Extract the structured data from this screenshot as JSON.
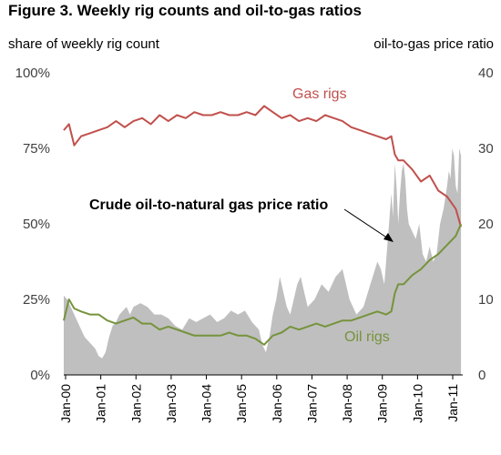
{
  "title": "Figure 3.  Weekly rig counts and oil-to-gas ratios",
  "chart_data": {
    "type": "line",
    "left_axis": {
      "label": "share of weekly rig count",
      "ticks": [
        "0%",
        "25%",
        "50%",
        "75%",
        "100%"
      ],
      "range": [
        0,
        100
      ]
    },
    "right_axis": {
      "label": "oil-to-gas price ratio",
      "ticks": [
        "0",
        "10",
        "20",
        "30",
        "40"
      ],
      "range": [
        0,
        40
      ]
    },
    "x_ticks": [
      "Jan-00",
      "Jan-01",
      "Jan-02",
      "Jan-03",
      "Jan-04",
      "Jan-05",
      "Jan-06",
      "Jan-07",
      "Jan-08",
      "Jan-09",
      "Jan-10",
      "Jan-11"
    ],
    "x_range": [
      2000.0,
      2011.45
    ],
    "annotations": {
      "gas": "Gas rigs",
      "oil": "Oil rigs",
      "ratio": "Crude oil-to-natural gas price ratio"
    },
    "grid": false,
    "series": [
      {
        "name": "Gas rigs",
        "axis": "left",
        "render": "line",
        "color": "#c0504d",
        "x": [
          2000.0,
          2000.15,
          2000.3,
          2000.5,
          2000.75,
          2001.0,
          2001.25,
          2001.5,
          2001.75,
          2002.0,
          2002.25,
          2002.5,
          2002.75,
          2003.0,
          2003.25,
          2003.5,
          2003.75,
          2004.0,
          2004.25,
          2004.5,
          2004.75,
          2005.0,
          2005.25,
          2005.5,
          2005.75,
          2006.0,
          2006.25,
          2006.5,
          2006.75,
          2007.0,
          2007.25,
          2007.5,
          2007.75,
          2008.0,
          2008.25,
          2008.5,
          2008.75,
          2009.0,
          2009.25,
          2009.4,
          2009.5,
          2009.6,
          2009.75,
          2010.0,
          2010.25,
          2010.5,
          2010.75,
          2011.0,
          2011.25,
          2011.4
        ],
        "y": [
          81,
          83,
          76,
          79,
          80,
          81,
          82,
          84,
          82,
          84,
          85,
          83,
          86,
          84,
          86,
          85,
          87,
          86,
          86,
          87,
          86,
          86,
          87,
          86,
          89,
          87,
          85,
          86,
          84,
          85,
          84,
          86,
          85,
          84,
          82,
          81,
          80,
          79,
          78,
          79,
          73,
          71,
          71,
          68,
          64,
          66,
          61,
          59,
          55,
          49
        ]
      },
      {
        "name": "Oil rigs",
        "axis": "left",
        "render": "line",
        "color": "#76933c",
        "x": [
          2000.0,
          2000.15,
          2000.3,
          2000.5,
          2000.75,
          2001.0,
          2001.25,
          2001.5,
          2001.75,
          2002.0,
          2002.25,
          2002.5,
          2002.75,
          2003.0,
          2003.25,
          2003.5,
          2003.75,
          2004.0,
          2004.25,
          2004.5,
          2004.75,
          2005.0,
          2005.25,
          2005.5,
          2005.75,
          2006.0,
          2006.25,
          2006.5,
          2006.75,
          2007.0,
          2007.25,
          2007.5,
          2007.75,
          2008.0,
          2008.25,
          2008.5,
          2008.75,
          2009.0,
          2009.25,
          2009.4,
          2009.5,
          2009.6,
          2009.75,
          2010.0,
          2010.25,
          2010.5,
          2010.75,
          2011.0,
          2011.25,
          2011.4
        ],
        "y": [
          18,
          25,
          22,
          21,
          20,
          20,
          18,
          17,
          18,
          19,
          17,
          17,
          15,
          16,
          15,
          14,
          13,
          13,
          13,
          13,
          14,
          13,
          13,
          12,
          10,
          13,
          14,
          16,
          15,
          16,
          17,
          16,
          17,
          18,
          18,
          19,
          20,
          21,
          20,
          21,
          27,
          30,
          30,
          33,
          35,
          38,
          40,
          43,
          46,
          50
        ]
      },
      {
        "name": "Crude oil-to-natural gas price ratio",
        "axis": "right",
        "render": "area",
        "color": "#bfbfbf",
        "x": [
          2000.0,
          2000.1,
          2000.2,
          2000.3,
          2000.4,
          2000.5,
          2000.6,
          2000.7,
          2000.8,
          2000.9,
          2001.0,
          2001.1,
          2001.2,
          2001.3,
          2001.4,
          2001.5,
          2001.6,
          2001.7,
          2001.8,
          2001.9,
          2002.0,
          2002.2,
          2002.4,
          2002.6,
          2002.8,
          2003.0,
          2003.2,
          2003.4,
          2003.6,
          2003.8,
          2004.0,
          2004.2,
          2004.4,
          2004.6,
          2004.8,
          2005.0,
          2005.2,
          2005.4,
          2005.6,
          2005.7,
          2005.8,
          2005.9,
          2006.0,
          2006.1,
          2006.2,
          2006.3,
          2006.4,
          2006.5,
          2006.6,
          2006.7,
          2006.8,
          2006.9,
          2007.0,
          2007.2,
          2007.4,
          2007.6,
          2007.8,
          2008.0,
          2008.2,
          2008.4,
          2008.6,
          2008.8,
          2009.0,
          2009.1,
          2009.2,
          2009.3,
          2009.35,
          2009.4,
          2009.45,
          2009.5,
          2009.55,
          2009.6,
          2009.65,
          2009.7,
          2009.75,
          2009.8,
          2009.85,
          2009.9,
          2010.0,
          2010.1,
          2010.2,
          2010.3,
          2010.4,
          2010.5,
          2010.6,
          2010.7,
          2010.8,
          2010.9,
          2011.0,
          2011.05,
          2011.1,
          2011.15,
          2011.2,
          2011.25,
          2011.3,
          2011.35,
          2011.4
        ],
        "y": [
          10.5,
          10,
          9,
          8,
          7,
          6,
          5,
          4.5,
          4,
          3.5,
          2.5,
          2.2,
          3,
          5,
          6.5,
          7,
          8,
          8.5,
          9,
          8,
          9,
          9.5,
          9,
          8,
          8,
          7.5,
          6.5,
          6,
          7.5,
          7,
          7.5,
          8,
          7,
          7.5,
          8.5,
          8,
          8.5,
          7,
          6,
          4,
          3,
          5,
          8,
          10,
          13,
          11,
          9,
          8,
          10,
          12,
          13,
          11,
          9,
          10,
          12,
          11,
          13,
          14,
          10,
          8,
          9,
          12,
          15,
          14,
          12,
          18,
          21,
          24,
          21,
          28,
          25,
          20,
          24,
          27,
          28,
          26,
          22,
          20,
          19,
          18,
          20,
          16,
          15,
          17,
          15,
          16,
          20,
          22,
          25,
          27,
          26,
          30,
          29,
          25,
          24,
          30,
          29
        ]
      }
    ]
  }
}
